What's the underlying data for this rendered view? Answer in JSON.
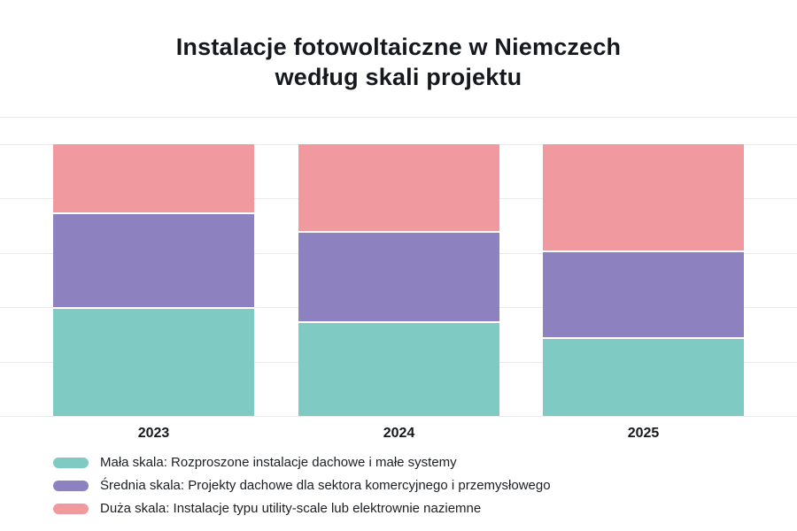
{
  "title": {
    "line1": "Instalacje fotowoltaiczne w Niemczech",
    "line2": "według skali projektu"
  },
  "chart_data": {
    "type": "bar",
    "stacked": true,
    "percent_stacked": true,
    "title": "Instalacje fotowoltaiczne w Niemczech według skali projektu",
    "categories": [
      "2023",
      "2024",
      "2025"
    ],
    "series": [
      {
        "name": "Mała skala: Rozproszone instalacje dachowe i małe systemy",
        "color": "#7FCAC2",
        "values": [
          40,
          35,
          29
        ]
      },
      {
        "name": "Średnia skala: Projekty dachowe dla sektora komercyjnego i przemysłowego",
        "color": "#8E81BF",
        "values": [
          35,
          33,
          32
        ]
      },
      {
        "name": "Duża skala: Instalacje typu utility-scale lub elektrownie naziemne",
        "color": "#F09AA0",
        "values": [
          25,
          32,
          39
        ]
      }
    ],
    "xlabel": "",
    "ylabel": "",
    "ylim": [
      0,
      110
    ],
    "gridlines": [
      0,
      20,
      40,
      60,
      80,
      100,
      110
    ],
    "grid_color": "#EAEAEE",
    "y_tick_labels_visible": false,
    "legend_position": "bottom-left"
  }
}
